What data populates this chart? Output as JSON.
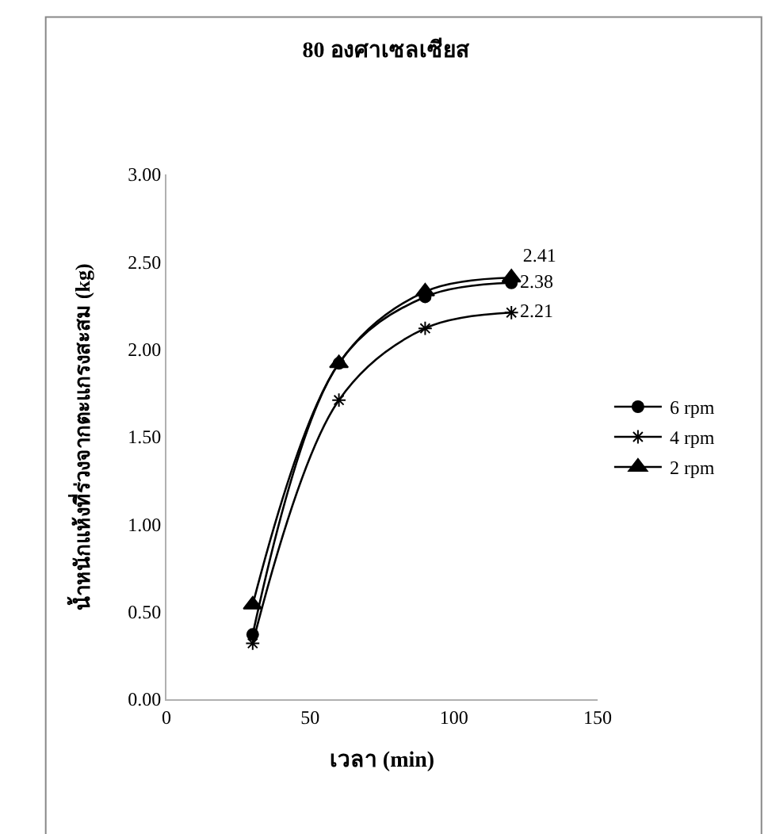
{
  "chart_data": {
    "type": "line",
    "title": "80 องศาเซลเซียส",
    "xlabel": "เวลา (min)",
    "ylabel": "น้ำหนักแห้งที่ร่วงจากตะแกรงสะสม (kg)",
    "x": [
      30,
      60,
      90,
      120
    ],
    "series": [
      {
        "name": "6 rpm",
        "color": "#000000",
        "marker": "circle",
        "values": [
          0.37,
          1.92,
          2.3,
          2.38
        ],
        "value_labels": [
          null,
          null,
          null,
          "2.38"
        ]
      },
      {
        "name": "4 rpm",
        "color": "#000000",
        "marker": "cross",
        "values": [
          0.32,
          1.71,
          2.12,
          2.21
        ],
        "value_labels": [
          null,
          null,
          null,
          "2.21"
        ]
      },
      {
        "name": "2 rpm",
        "color": "#000000",
        "marker": "triangle",
        "values": [
          0.54,
          1.92,
          2.33,
          2.41
        ],
        "value_labels": [
          null,
          null,
          null,
          "2.41"
        ]
      }
    ],
    "xlim": [
      0,
      150
    ],
    "xticks": [
      0,
      50,
      100,
      150
    ],
    "ylim": [
      0,
      3
    ],
    "yticks": [
      {
        "value": 0,
        "label": "0.00"
      },
      {
        "value": 0.5,
        "label": "0.50"
      },
      {
        "value": 1,
        "label": "1.00"
      },
      {
        "value": 1.5,
        "label": "1.50"
      },
      {
        "value": 2,
        "label": "2.00"
      },
      {
        "value": 2.5,
        "label": "2.50"
      },
      {
        "value": 3,
        "label": "3.00"
      }
    ],
    "legend": "right",
    "line_style": "solid"
  }
}
